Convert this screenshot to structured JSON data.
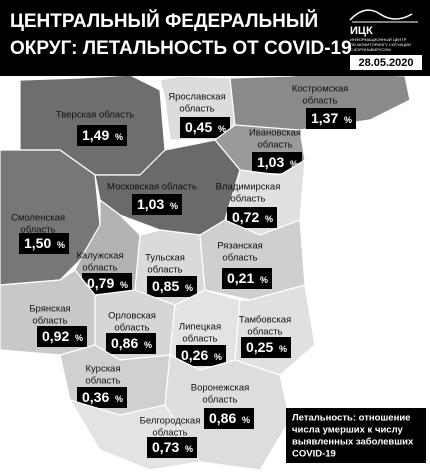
{
  "header": {
    "title": [
      "ЦЕНТРАЛЬНЫЙ ФЕДЕРАЛЬНЫЙ",
      "ОКРУГ: ЛЕТАЛЬНОСТЬ ОТ COVID-19"
    ],
    "logo": "ИЦК",
    "logo_caption": [
      "ИНФОРМАЦИОННЫЙ ЦЕНТР",
      "ПО МОНИТОРИНГУ СИТУАЦИИ",
      "С КОРОНАВИРУСОМ"
    ],
    "date": "28.05.2020"
  },
  "regions": [
    {
      "name": [
        "Тверская область"
      ],
      "value": "1,49",
      "unit": "%"
    },
    {
      "name": [
        "Ярославская",
        "область"
      ],
      "value": "0,45",
      "unit": "%"
    },
    {
      "name": [
        "Костромская",
        "область"
      ],
      "value": "1,37",
      "unit": "%"
    },
    {
      "name": [
        "Ивановская",
        "область"
      ],
      "value": "1,03",
      "unit": "%"
    },
    {
      "name": [
        "Московская область"
      ],
      "value": "1,03",
      "unit": "%"
    },
    {
      "name": [
        "Владимирская",
        "область"
      ],
      "value": "0,72",
      "unit": "%"
    },
    {
      "name": [
        "Смоленская",
        "область"
      ],
      "value": "1,50",
      "unit": "%"
    },
    {
      "name": [
        "Калужская",
        "область"
      ],
      "value": "0,79",
      "unit": "%"
    },
    {
      "name": [
        "Тульская",
        "область"
      ],
      "value": "0,85",
      "unit": "%"
    },
    {
      "name": [
        "Рязанская",
        "область"
      ],
      "value": "0,21",
      "unit": "%"
    },
    {
      "name": [
        "Брянская",
        "область"
      ],
      "value": "0,92",
      "unit": "%"
    },
    {
      "name": [
        "Орловская",
        "область"
      ],
      "value": "0,86",
      "unit": "%"
    },
    {
      "name": [
        "Липецкая",
        "область"
      ],
      "value": "0,26",
      "unit": "%"
    },
    {
      "name": [
        "Тамбовская",
        "область"
      ],
      "value": "0,25",
      "unit": "%"
    },
    {
      "name": [
        "Курская",
        "область"
      ],
      "value": "0,36",
      "unit": "%"
    },
    {
      "name": [
        "Воронежская",
        "область"
      ],
      "value": "0,86",
      "unit": "%"
    },
    {
      "name": [
        "Белгородская",
        "область"
      ],
      "value": "0,73",
      "unit": "%"
    }
  ],
  "note": [
    "Летальность: отношение",
    "числа умерших к числу",
    "выявленных заболевших",
    "COVID-19"
  ]
}
